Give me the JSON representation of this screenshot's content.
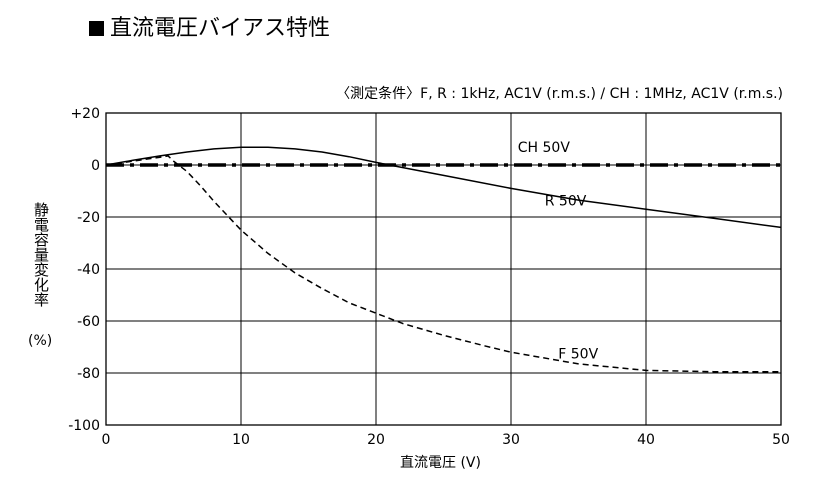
{
  "header": {
    "title": "直流電圧バイアス特性",
    "conditions": "〈測定条件〉F, R : 1kHz, AC1V (r.m.s.) / CH : 1MHz, AC1V (r.m.s.)"
  },
  "chart_data": {
    "type": "line",
    "xlabel": "直流電圧 (V)",
    "ylabel": "静電容量変化率",
    "yunit": "(%)",
    "xlim": [
      0,
      50
    ],
    "ylim": [
      -100,
      20
    ],
    "xticks": [
      "0",
      "10",
      "20",
      "30",
      "40",
      "50"
    ],
    "yticks": [
      "+20",
      "0",
      "-20",
      "-40",
      "-60",
      "-80",
      "-100"
    ],
    "grid": true,
    "series": [
      {
        "name": "CH 50V",
        "style": "dash-dot",
        "x": [
          0,
          50
        ],
        "y": [
          0,
          0
        ]
      },
      {
        "name": "R 50V",
        "style": "solid",
        "x": [
          0,
          2,
          4,
          6,
          8,
          10,
          12,
          14,
          16,
          18,
          20,
          22,
          25,
          30,
          35,
          40,
          45,
          50
        ],
        "y": [
          0,
          1.8,
          3.5,
          5,
          6.2,
          6.8,
          6.8,
          6.2,
          5,
          3.2,
          1,
          -1,
          -4,
          -9,
          -13.5,
          -17,
          -20.5,
          -24
        ]
      },
      {
        "name": "F 50V",
        "style": "dashed",
        "x": [
          0,
          2,
          4,
          4.6,
          5,
          6,
          7,
          8,
          10,
          12,
          14,
          16,
          18,
          20,
          22,
          25,
          28,
          30,
          35,
          40,
          45,
          50
        ],
        "y": [
          0,
          1.5,
          3,
          3.5,
          1.5,
          -2.5,
          -8,
          -14,
          -25,
          -34,
          -41.5,
          -47.5,
          -53,
          -57,
          -61,
          -65.5,
          -69.5,
          -72,
          -76.5,
          -79,
          -79.5,
          -79.5
        ]
      }
    ]
  }
}
